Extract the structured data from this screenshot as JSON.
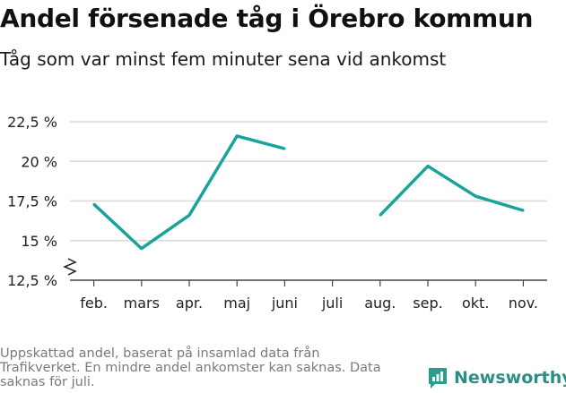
{
  "header": {
    "title": "Andel försenade tåg i Örebro kommun",
    "subtitle": "Tåg som var minst fem minuter sena vid ankomst"
  },
  "footnote": "Uppskattad andel, baserat på insamlad data från Trafikverket. En mindre andel ankomster kan saknas. Data saknas för juli.",
  "brand": {
    "name": "Newsworthy",
    "color": "#2a9d8f"
  },
  "chart_data": {
    "type": "line",
    "title": "Andel försenade tåg i Örebro kommun",
    "subtitle": "Tåg som var minst fem minuter sena vid ankomst",
    "xlabel": "",
    "ylabel": "",
    "categories": [
      "feb.",
      "mars",
      "apr.",
      "maj",
      "juni",
      "juli",
      "aug.",
      "sep.",
      "okt.",
      "nov."
    ],
    "series": [
      {
        "values": [
          17.3,
          14.5,
          16.6,
          21.6,
          20.8,
          null,
          16.6,
          19.7,
          17.8,
          16.9
        ],
        "color": "#1aa39a"
      }
    ],
    "ylim": [
      12.5,
      22.5
    ],
    "yticks": [
      12.5,
      15,
      17.5,
      20,
      22.5
    ],
    "ytick_labels": [
      "12,5 %",
      "15 %",
      "17,5 %",
      "20 %",
      "22,5 %"
    ],
    "axis_break": true,
    "grid": "horizontal",
    "legend": "none"
  }
}
